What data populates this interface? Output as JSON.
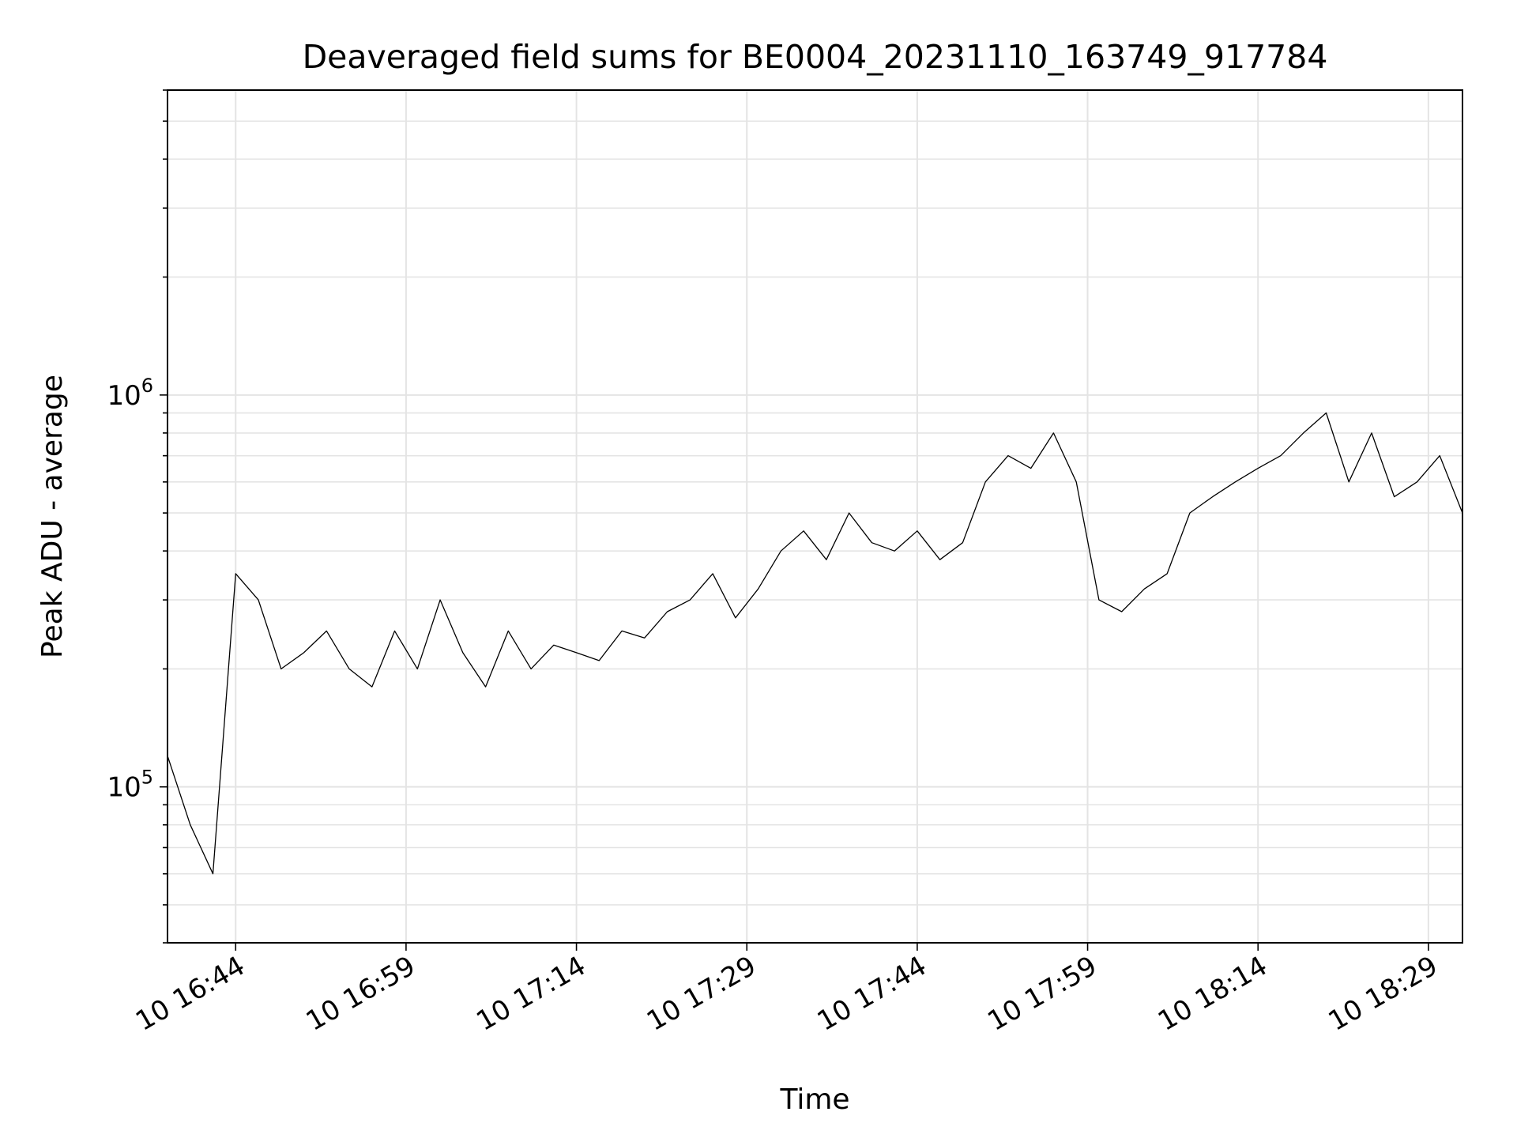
{
  "chart_data": {
    "type": "line",
    "title": "Deaveraged field sums for BE0004_20231110_163749_917784",
    "xlabel": "Time",
    "ylabel": "Peak ADU - average",
    "yscale": "log",
    "grid": true,
    "xlim": [
      "2023-11-10 16:38",
      "2023-11-10 18:32"
    ],
    "ylim": [
      40000,
      6000000
    ],
    "x_ticks": [
      {
        "value": "2023-11-10 16:44",
        "label": "10 16:44"
      },
      {
        "value": "2023-11-10 16:59",
        "label": "10 16:59"
      },
      {
        "value": "2023-11-10 17:14",
        "label": "10 17:14"
      },
      {
        "value": "2023-11-10 17:29",
        "label": "10 17:29"
      },
      {
        "value": "2023-11-10 17:44",
        "label": "10 17:44"
      },
      {
        "value": "2023-11-10 17:59",
        "label": "10 17:59"
      },
      {
        "value": "2023-11-10 18:14",
        "label": "10 18:14"
      },
      {
        "value": "2023-11-10 18:29",
        "label": "10 18:29"
      }
    ],
    "y_ticks": [
      {
        "value": 100000,
        "base": "10",
        "exp": "5"
      },
      {
        "value": 1000000,
        "base": "10",
        "exp": "6"
      }
    ],
    "series": [
      {
        "color": "#000000",
        "x": [
          "2023-11-10 16:38",
          "2023-11-10 16:40",
          "2023-11-10 16:42",
          "2023-11-10 16:44",
          "2023-11-10 16:46",
          "2023-11-10 16:48",
          "2023-11-10 16:50",
          "2023-11-10 16:52",
          "2023-11-10 16:54",
          "2023-11-10 16:56",
          "2023-11-10 16:58",
          "2023-11-10 17:00",
          "2023-11-10 17:02",
          "2023-11-10 17:04",
          "2023-11-10 17:06",
          "2023-11-10 17:08",
          "2023-11-10 17:10",
          "2023-11-10 17:12",
          "2023-11-10 17:14",
          "2023-11-10 17:16",
          "2023-11-10 17:18",
          "2023-11-10 17:20",
          "2023-11-10 17:22",
          "2023-11-10 17:24",
          "2023-11-10 17:26",
          "2023-11-10 17:28",
          "2023-11-10 17:30",
          "2023-11-10 17:32",
          "2023-11-10 17:34",
          "2023-11-10 17:36",
          "2023-11-10 17:38",
          "2023-11-10 17:40",
          "2023-11-10 17:42",
          "2023-11-10 17:44",
          "2023-11-10 17:46",
          "2023-11-10 17:48",
          "2023-11-10 17:50",
          "2023-11-10 17:52",
          "2023-11-10 17:54",
          "2023-11-10 17:56",
          "2023-11-10 17:58",
          "2023-11-10 18:00",
          "2023-11-10 18:02",
          "2023-11-10 18:04",
          "2023-11-10 18:06",
          "2023-11-10 18:08",
          "2023-11-10 18:10",
          "2023-11-10 18:12",
          "2023-11-10 18:14",
          "2023-11-10 18:16",
          "2023-11-10 18:18",
          "2023-11-10 18:20",
          "2023-11-10 18:22",
          "2023-11-10 18:24",
          "2023-11-10 18:26",
          "2023-11-10 18:28",
          "2023-11-10 18:30",
          "2023-11-10 18:32"
        ],
        "y": [
          120000,
          80000,
          60000,
          350000,
          300000,
          200000,
          220000,
          250000,
          200000,
          180000,
          250000,
          200000,
          300000,
          220000,
          180000,
          250000,
          200000,
          230000,
          220000,
          210000,
          250000,
          240000,
          280000,
          300000,
          350000,
          270000,
          320000,
          400000,
          450000,
          380000,
          500000,
          420000,
          400000,
          450000,
          380000,
          420000,
          600000,
          700000,
          650000,
          800000,
          600000,
          300000,
          280000,
          320000,
          350000,
          500000,
          550000,
          600000,
          650000,
          700000,
          800000,
          900000,
          600000,
          800000,
          550000,
          600000,
          700000,
          500000
        ]
      }
    ]
  }
}
